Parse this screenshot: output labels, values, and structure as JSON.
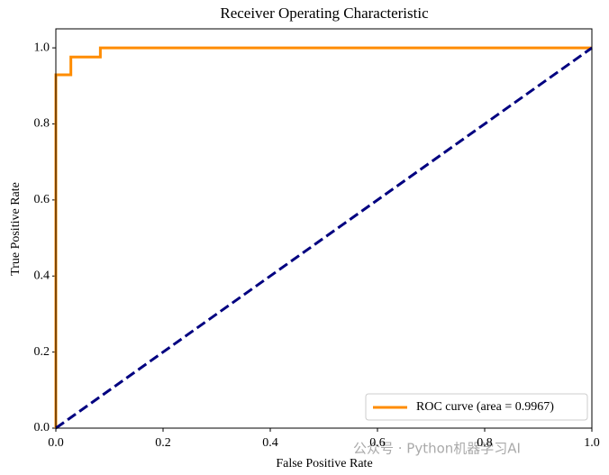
{
  "chart_data": {
    "type": "line",
    "title": "Receiver Operating Characteristic",
    "x_label": "False Positive Rate",
    "y_label": "True Positive Rate",
    "xlim": [
      0,
      1
    ],
    "ylim": [
      0,
      1.05
    ],
    "xticks": [
      {
        "value": 0,
        "label": "0.0"
      },
      {
        "value": 0.2,
        "label": "0.2"
      },
      {
        "value": 0.4,
        "label": "0.4"
      },
      {
        "value": 0.6,
        "label": "0.6"
      },
      {
        "value": 0.8,
        "label": "0.8"
      },
      {
        "value": 1,
        "label": "1.0"
      }
    ],
    "yticks": [
      {
        "value": 0,
        "label": "0.0"
      },
      {
        "value": 0.2,
        "label": "0.2"
      },
      {
        "value": 0.4,
        "label": "0.4"
      },
      {
        "value": 0.6,
        "label": "0.6"
      },
      {
        "value": 0.8,
        "label": "0.8"
      },
      {
        "value": 1,
        "label": "1.0"
      }
    ],
    "legend": "lower right",
    "series": [
      {
        "name": "ROC curve (area = 0.9967)",
        "color": "#ff8c00",
        "dash": false,
        "x": [
          0,
          0,
          0.028,
          0.028,
          0.083,
          0.083,
          1
        ],
        "values": [
          0,
          0.929,
          0.929,
          0.976,
          0.976,
          1,
          1
        ]
      },
      {
        "color": "#000080",
        "dash": true,
        "x": [
          0,
          1
        ],
        "values": [
          0,
          1
        ]
      }
    ],
    "watermark": "公众号 · Python机器学习AI"
  }
}
